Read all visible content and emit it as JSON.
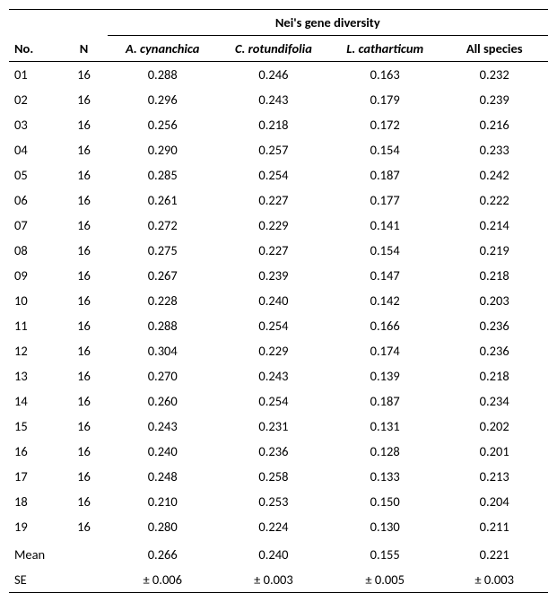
{
  "headers": {
    "group_label": "Nei's gene diversity",
    "no": "No.",
    "n": "N",
    "species": [
      "A. cynanchica",
      "C. rotundifolia",
      "L. catharticum",
      "All species"
    ]
  },
  "rows": [
    {
      "no": "01",
      "n": "16",
      "v": [
        "0.288",
        "0.246",
        "0.163",
        "0.232"
      ]
    },
    {
      "no": "02",
      "n": "16",
      "v": [
        "0.296",
        "0.243",
        "0.179",
        "0.239"
      ]
    },
    {
      "no": "03",
      "n": "16",
      "v": [
        "0.256",
        "0.218",
        "0.172",
        "0.216"
      ]
    },
    {
      "no": "04",
      "n": "16",
      "v": [
        "0.290",
        "0.257",
        "0.154",
        "0.233"
      ]
    },
    {
      "no": "05",
      "n": "16",
      "v": [
        "0.285",
        "0.254",
        "0.187",
        "0.242"
      ]
    },
    {
      "no": "06",
      "n": "16",
      "v": [
        "0.261",
        "0.227",
        "0.177",
        "0.222"
      ]
    },
    {
      "no": "07",
      "n": "16",
      "v": [
        "0.272",
        "0.229",
        "0.141",
        "0.214"
      ]
    },
    {
      "no": "08",
      "n": "16",
      "v": [
        "0.275",
        "0.227",
        "0.154",
        "0.219"
      ]
    },
    {
      "no": "09",
      "n": "16",
      "v": [
        "0.267",
        "0.239",
        "0.147",
        "0.218"
      ]
    },
    {
      "no": "10",
      "n": "16",
      "v": [
        "0.228",
        "0.240",
        "0.142",
        "0.203"
      ]
    },
    {
      "no": "11",
      "n": "16",
      "v": [
        "0.288",
        "0.254",
        "0.166",
        "0.236"
      ]
    },
    {
      "no": "12",
      "n": "16",
      "v": [
        "0.304",
        "0.229",
        "0.174",
        "0.236"
      ]
    },
    {
      "no": "13",
      "n": "16",
      "v": [
        "0.270",
        "0.243",
        "0.139",
        "0.218"
      ]
    },
    {
      "no": "14",
      "n": "16",
      "v": [
        "0.260",
        "0.254",
        "0.187",
        "0.234"
      ]
    },
    {
      "no": "15",
      "n": "16",
      "v": [
        "0.243",
        "0.231",
        "0.131",
        "0.202"
      ]
    },
    {
      "no": "16",
      "n": "16",
      "v": [
        "0.240",
        "0.236",
        "0.128",
        "0.201"
      ]
    },
    {
      "no": "17",
      "n": "16",
      "v": [
        "0.248",
        "0.258",
        "0.133",
        "0.213"
      ]
    },
    {
      "no": "18",
      "n": "16",
      "v": [
        "0.210",
        "0.253",
        "0.150",
        "0.204"
      ]
    },
    {
      "no": "19",
      "n": "16",
      "v": [
        "0.280",
        "0.224",
        "0.130",
        "0.211"
      ]
    }
  ],
  "summary": {
    "mean_label": "Mean",
    "mean": [
      "0.266",
      "0.240",
      "0.155",
      "0.221"
    ],
    "se_label": "SE",
    "se": [
      "± 0.006",
      "± 0.003",
      "± 0.005",
      "± 0.003"
    ]
  }
}
